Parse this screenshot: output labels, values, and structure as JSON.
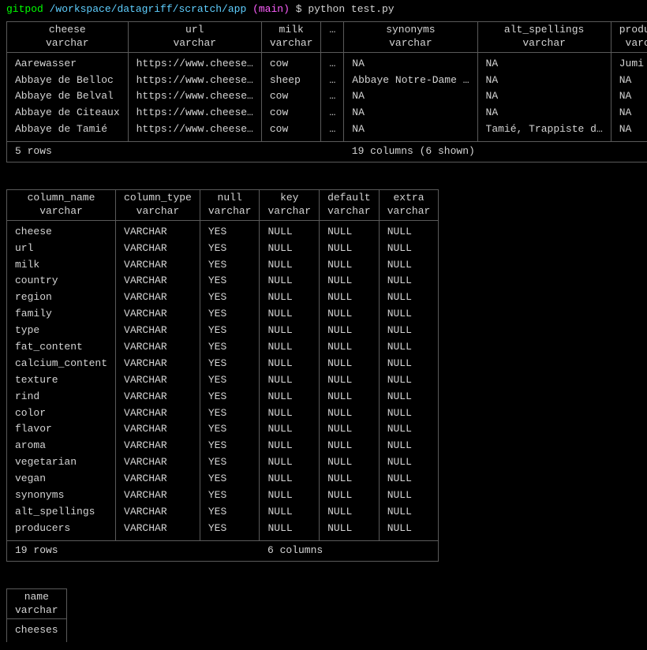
{
  "prompt": {
    "gitpod": "gitpod",
    "path": "/workspace/datagriff/scratch/app",
    "branch": "(main)",
    "dollar": "$",
    "command": "python test.py"
  },
  "table1": {
    "columns": [
      {
        "name": "cheese",
        "type": "varchar"
      },
      {
        "name": "url",
        "type": "varchar"
      },
      {
        "name": "milk",
        "type": "varchar"
      },
      {
        "name": "…",
        "type": ""
      },
      {
        "name": "synonyms",
        "type": "varchar"
      },
      {
        "name": "alt_spellings",
        "type": "varchar"
      },
      {
        "name": "producers",
        "type": "varchar"
      }
    ],
    "rows": [
      [
        "Aarewasser",
        "https://www.cheese…",
        "cow",
        "…",
        "NA",
        "NA",
        "Jumi"
      ],
      [
        "Abbaye de Belloc",
        "https://www.cheese…",
        "sheep",
        "…",
        "Abbaye Notre-Dame …",
        "NA",
        "NA"
      ],
      [
        "Abbaye de Belval",
        "https://www.cheese…",
        "cow",
        "…",
        "NA",
        "NA",
        "NA"
      ],
      [
        "Abbaye de Citeaux",
        "https://www.cheese…",
        "cow",
        "…",
        "NA",
        "NA",
        "NA"
      ],
      [
        "Abbaye de Tamié",
        "https://www.cheese…",
        "cow",
        "…",
        "NA",
        "Tamié, Trappiste d…",
        "NA"
      ]
    ],
    "footer_left": "5 rows",
    "footer_right": "19 columns (6 shown)"
  },
  "table2": {
    "columns": [
      {
        "name": "column_name",
        "type": "varchar"
      },
      {
        "name": "column_type",
        "type": "varchar"
      },
      {
        "name": "null",
        "type": "varchar"
      },
      {
        "name": "key",
        "type": "varchar"
      },
      {
        "name": "default",
        "type": "varchar"
      },
      {
        "name": "extra",
        "type": "varchar"
      }
    ],
    "rows": [
      [
        "cheese",
        "VARCHAR",
        "YES",
        "NULL",
        "NULL",
        "NULL"
      ],
      [
        "url",
        "VARCHAR",
        "YES",
        "NULL",
        "NULL",
        "NULL"
      ],
      [
        "milk",
        "VARCHAR",
        "YES",
        "NULL",
        "NULL",
        "NULL"
      ],
      [
        "country",
        "VARCHAR",
        "YES",
        "NULL",
        "NULL",
        "NULL"
      ],
      [
        "region",
        "VARCHAR",
        "YES",
        "NULL",
        "NULL",
        "NULL"
      ],
      [
        "family",
        "VARCHAR",
        "YES",
        "NULL",
        "NULL",
        "NULL"
      ],
      [
        "type",
        "VARCHAR",
        "YES",
        "NULL",
        "NULL",
        "NULL"
      ],
      [
        "fat_content",
        "VARCHAR",
        "YES",
        "NULL",
        "NULL",
        "NULL"
      ],
      [
        "calcium_content",
        "VARCHAR",
        "YES",
        "NULL",
        "NULL",
        "NULL"
      ],
      [
        "texture",
        "VARCHAR",
        "YES",
        "NULL",
        "NULL",
        "NULL"
      ],
      [
        "rind",
        "VARCHAR",
        "YES",
        "NULL",
        "NULL",
        "NULL"
      ],
      [
        "color",
        "VARCHAR",
        "YES",
        "NULL",
        "NULL",
        "NULL"
      ],
      [
        "flavor",
        "VARCHAR",
        "YES",
        "NULL",
        "NULL",
        "NULL"
      ],
      [
        "aroma",
        "VARCHAR",
        "YES",
        "NULL",
        "NULL",
        "NULL"
      ],
      [
        "vegetarian",
        "VARCHAR",
        "YES",
        "NULL",
        "NULL",
        "NULL"
      ],
      [
        "vegan",
        "VARCHAR",
        "YES",
        "NULL",
        "NULL",
        "NULL"
      ],
      [
        "synonyms",
        "VARCHAR",
        "YES",
        "NULL",
        "NULL",
        "NULL"
      ],
      [
        "alt_spellings",
        "VARCHAR",
        "YES",
        "NULL",
        "NULL",
        "NULL"
      ],
      [
        "producers",
        "VARCHAR",
        "YES",
        "NULL",
        "NULL",
        "NULL"
      ]
    ],
    "footer_left": "19 rows",
    "footer_right": "6 columns"
  },
  "table3": {
    "columns": [
      {
        "name": "name",
        "type": "varchar"
      }
    ],
    "rows": [
      [
        "cheeses"
      ]
    ]
  }
}
